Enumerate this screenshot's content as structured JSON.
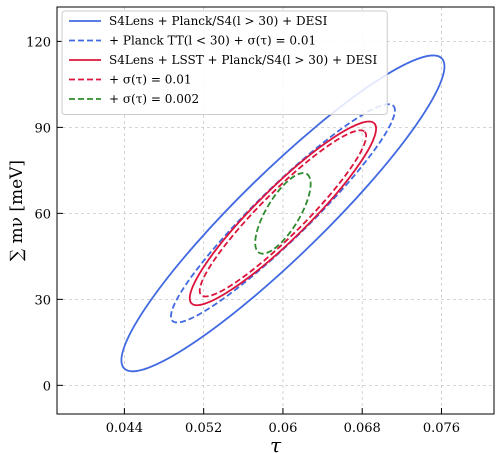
{
  "chart_data": {
    "type": "contour",
    "title": "",
    "xlabel": "τ",
    "ylabel": "∑ mν [meV]",
    "xlim": [
      0.0372,
      0.0813
    ],
    "ylim": [
      -10,
      132
    ],
    "xticks": [
      "0.044",
      "0.052",
      "0.06",
      "0.068",
      "0.076"
    ],
    "xtick_values": [
      0.044,
      0.052,
      0.06,
      0.068,
      0.076
    ],
    "yticks": [
      "0",
      "30",
      "60",
      "90",
      "120"
    ],
    "ytick_values": [
      0,
      30,
      60,
      90,
      120
    ],
    "grid": true,
    "legend_position": "top-left",
    "series": [
      {
        "name": "S4Lens + Planck/S4(l > 30) + DESI",
        "color": "#4169e1",
        "style": "solid",
        "center": [
          0.06,
          60
        ],
        "extent_x": [
          0.0437,
          0.0763
        ],
        "extent_y": [
          5,
          115
        ]
      },
      {
        "name": "+ Planck TT(l < 30) + σ(τ) = 0.01",
        "color": "#4169e1",
        "style": "dashed",
        "center": [
          0.06,
          60
        ],
        "extent_x": [
          0.0486,
          0.0712
        ],
        "extent_y": [
          22,
          98
        ]
      },
      {
        "name": "S4Lens + LSST + Planck/S4(l > 30) + DESI",
        "color": "#dc143c",
        "style": "solid",
        "center": [
          0.06,
          60
        ],
        "extent_x": [
          0.0506,
          0.0694
        ],
        "extent_y": [
          28,
          92
        ]
      },
      {
        "name": "+ σ(τ) = 0.01",
        "color": "#dc143c",
        "style": "dashed",
        "center": [
          0.06,
          60
        ],
        "extent_x": [
          0.0516,
          0.0684
        ],
        "extent_y": [
          31,
          89
        ]
      },
      {
        "name": "+ σ(τ) = 0.002",
        "color": "#2e8b2e",
        "style": "dashed",
        "center": [
          0.06,
          60
        ],
        "extent_x": [
          0.0572,
          0.0628
        ],
        "extent_y": [
          44,
          76
        ]
      }
    ]
  }
}
